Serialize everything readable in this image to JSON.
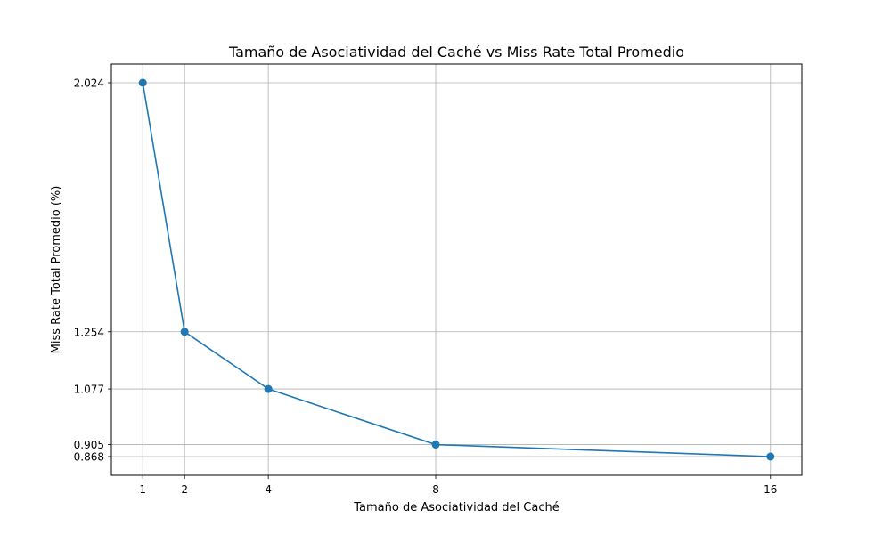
{
  "chart_data": {
    "type": "line",
    "title": "Tamaño de Asociatividad del Caché vs Miss Rate Total Promedio",
    "xlabel": "Tamaño de Asociatividad del Caché",
    "ylabel": "Miss Rate Total Promedio (%)",
    "x": [
      1,
      2,
      4,
      8,
      16
    ],
    "x_tick_labels": [
      "1",
      "2",
      "4",
      "8",
      "16"
    ],
    "y_ticks": [
      0.868,
      0.905,
      1.077,
      1.254,
      2.024
    ],
    "y_tick_labels": [
      "0.868",
      "0.905",
      "1.077",
      "1.254",
      "2.024"
    ],
    "series": [
      {
        "values": [
          2.024,
          1.254,
          1.077,
          0.905,
          0.868
        ],
        "color": "#1f77b4",
        "marker": "circle"
      }
    ],
    "xlim": [
      0.25,
      16.75
    ],
    "ylim": [
      0.8102,
      2.0818
    ],
    "grid": true
  }
}
